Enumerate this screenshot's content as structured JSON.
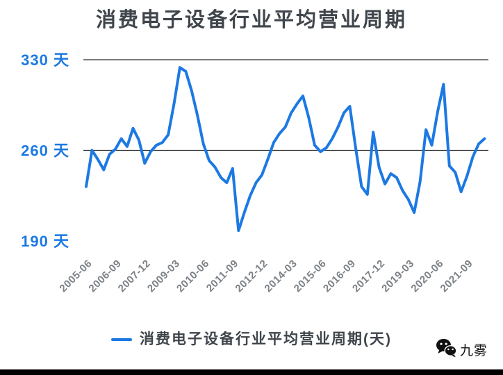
{
  "title": "消费电子设备行业平均营业周期",
  "legend": {
    "label": "消费电子设备行业平均营业周期(天)"
  },
  "watermark": {
    "name": "九雾",
    "icon": "wechat-logo-icon"
  },
  "colors": {
    "line": "#1c79e3",
    "y_label_blue": "#1c79e3",
    "title_gray": "#3f454b",
    "x_label_gray": "#7d8287",
    "gridline": "#2a2a2a",
    "footer_bar": "#000000",
    "watermark_black": "#111111"
  },
  "chart_data": {
    "type": "line",
    "title": "消费电子设备行业平均营业周期",
    "series": [
      {
        "name": "消费电子设备行业平均营业周期(天)",
        "values": [
          232,
          260,
          253,
          245,
          257,
          261,
          269,
          263,
          277,
          268,
          250,
          259,
          264,
          266,
          272,
          296,
          324,
          321,
          306,
          287,
          265,
          252,
          247,
          239,
          235,
          246,
          198,
          212,
          225,
          235,
          241,
          253,
          266,
          273,
          278,
          289,
          296,
          302,
          285,
          264,
          259,
          262,
          269,
          278,
          289,
          294,
          262,
          232,
          226,
          274,
          247,
          234,
          242,
          239,
          229,
          222,
          212,
          236,
          276,
          264,
          290,
          311,
          248,
          243,
          228,
          240,
          255,
          265,
          269
        ]
      }
    ],
    "x": [
      "2005-06",
      "2005-09",
      "2005-12",
      "2006-03",
      "2006-06",
      "2006-09",
      "2006-12",
      "2007-03",
      "2007-06",
      "2007-09",
      "2007-12",
      "2008-03",
      "2008-06",
      "2008-09",
      "2008-12",
      "2009-03",
      "2009-06",
      "2009-09",
      "2009-12",
      "2010-03",
      "2010-06",
      "2010-09",
      "2010-12",
      "2011-03",
      "2011-06",
      "2011-09",
      "2011-12",
      "2012-03",
      "2012-06",
      "2012-09",
      "2012-12",
      "2013-03",
      "2013-06",
      "2013-09",
      "2013-12",
      "2014-03",
      "2014-06",
      "2014-09",
      "2014-12",
      "2015-03",
      "2015-06",
      "2015-09",
      "2015-12",
      "2016-03",
      "2016-06",
      "2016-09",
      "2016-12",
      "2017-03",
      "2017-06",
      "2017-09",
      "2017-12",
      "2018-03",
      "2018-06",
      "2018-09",
      "2018-12",
      "2019-03",
      "2019-06",
      "2019-09",
      "2019-12",
      "2020-03",
      "2020-06",
      "2020-09",
      "2020-12",
      "2021-03",
      "2021-06",
      "2021-09",
      "2021-12",
      "2022-03",
      "2022-06"
    ],
    "x_tick_labels": [
      "2005-06",
      "2006-09",
      "2007-12",
      "2009-03",
      "2010-06",
      "2011-09",
      "2012-12",
      "2014-03",
      "2015-06",
      "2016-09",
      "2017-12",
      "2019-03",
      "2020-06",
      "2021-09"
    ],
    "x_tick_every": 5,
    "y_ticks": [
      {
        "label": "330 天",
        "value": 330
      },
      {
        "label": "260 天",
        "value": 260
      },
      {
        "label": "190 天",
        "value": 190
      }
    ],
    "grid_values": [
      330,
      260
    ],
    "ylim": [
      185,
      340
    ],
    "unit": "天",
    "legend_position": "bottom",
    "grid": "horizontal-partial"
  }
}
